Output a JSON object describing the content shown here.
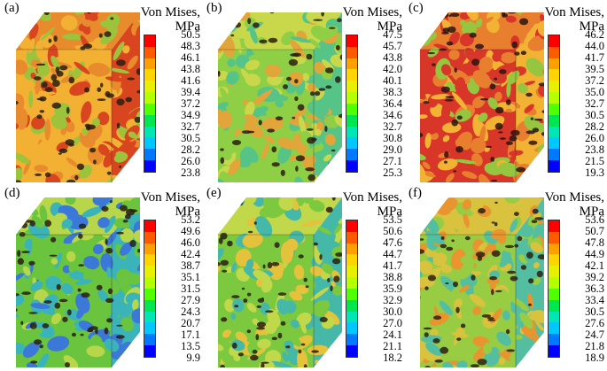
{
  "panels": [
    {
      "label": "(a)",
      "legend_title_1": "Von Mises,",
      "legend_title_2": "MPa",
      "ticks": [
        "50.5",
        "48.3",
        "46.1",
        "43.8",
        "41.6",
        "39.4",
        "37.2",
        "34.9",
        "32.7",
        "30.5",
        "28.2",
        "26.0",
        "23.8"
      ],
      "palette": [
        "#f2b133",
        "#e88b2d",
        "#d8451f",
        "#9cc33b",
        "#2a1e10"
      ]
    },
    {
      "label": "(b)",
      "legend_title_1": "Von Mises,",
      "legend_title_2": "MPa",
      "ticks": [
        "47.5",
        "45.7",
        "43.8",
        "42.0",
        "40.1",
        "38.3",
        "36.4",
        "34.6",
        "32.7",
        "30.8",
        "29.0",
        "27.1",
        "25.3"
      ],
      "palette": [
        "#8fcf45",
        "#c9d84a",
        "#56c487",
        "#e2a53a",
        "#2a1e10"
      ]
    },
    {
      "label": "(c)",
      "legend_title_1": "Von Mises,",
      "legend_title_2": "MPa",
      "ticks": [
        "46.2",
        "44.0",
        "41.7",
        "39.5",
        "37.2",
        "35.0",
        "32.7",
        "30.5",
        "28.2",
        "26.0",
        "23.8",
        "21.5",
        "19.3"
      ],
      "palette": [
        "#d9362a",
        "#e87f2e",
        "#f2b233",
        "#96c540",
        "#2a1410"
      ]
    },
    {
      "label": "(d)",
      "legend_title_1": "Von Mises,",
      "legend_title_2": "MPa",
      "ticks": [
        "53.2",
        "49.6",
        "46.0",
        "42.4",
        "38.7",
        "35.1",
        "31.5",
        "27.9",
        "24.3",
        "20.7",
        "17.1",
        "13.5",
        "9.9"
      ],
      "palette": [
        "#6bc43e",
        "#b8d64a",
        "#3ab4b8",
        "#3b78d8",
        "#2a1e10"
      ]
    },
    {
      "label": "(e)",
      "legend_title_1": "Von Mises,",
      "legend_title_2": "MPa",
      "ticks": [
        "53.5",
        "50.6",
        "47.6",
        "44.7",
        "41.7",
        "38.8",
        "35.9",
        "32.9",
        "30.0",
        "27.0",
        "24.1",
        "21.1",
        "18.2"
      ],
      "palette": [
        "#7cc940",
        "#c0d84a",
        "#45b8a8",
        "#e4c23c",
        "#2a1e10"
      ]
    },
    {
      "label": "(f)",
      "legend_title_1": "Von Mises,",
      "legend_title_2": "MPa",
      "ticks": [
        "53.6",
        "50.7",
        "47.8",
        "44.9",
        "42.1",
        "39.2",
        "36.3",
        "33.4",
        "30.5",
        "27.6",
        "24.7",
        "21.8",
        "18.9"
      ],
      "palette": [
        "#98cc42",
        "#d9c23e",
        "#54bfa0",
        "#e8952f",
        "#2a1e10"
      ]
    }
  ],
  "colorbar_colors": [
    "#ff0000",
    "#ff5a00",
    "#ffa000",
    "#ffd400",
    "#e6f000",
    "#b4ff00",
    "#50ff00",
    "#00e650",
    "#00e6b4",
    "#00c8ff",
    "#0078ff",
    "#0000ff"
  ]
}
